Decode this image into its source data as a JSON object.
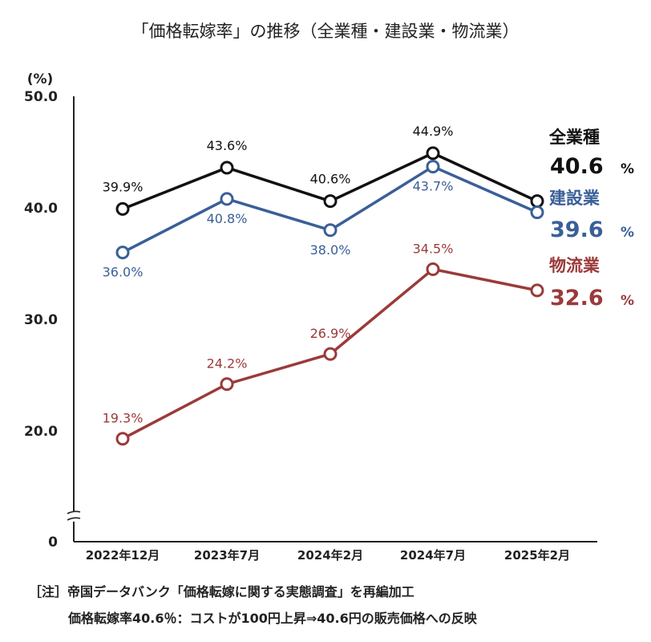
{
  "chart_data": {
    "type": "line",
    "title": "「価格転嫁率」の推移（全業種・建設業・物流業）",
    "ylabel": "(%)",
    "categories": [
      "2022年12月",
      "2023年7月",
      "2024年2月",
      "2024年7月",
      "2025年2月"
    ],
    "ylim": [
      10,
      50
    ],
    "yticks": [
      "50.0",
      "40.0",
      "30.0",
      "20.0",
      "0"
    ],
    "series": [
      {
        "name": "全業種",
        "color": "#111111",
        "values": [
          39.9,
          43.6,
          40.6,
          44.9,
          40.6
        ],
        "labels": [
          "39.9%",
          "43.6%",
          "40.6%",
          "44.9%",
          ""
        ],
        "end_value": "40.6",
        "end_unit": "%"
      },
      {
        "name": "建設業",
        "color": "#3a5f98",
        "values": [
          36.0,
          40.8,
          38.0,
          43.7,
          39.6
        ],
        "labels": [
          "36.0%",
          "40.8%",
          "38.0%",
          "43.7%",
          ""
        ],
        "end_value": "39.6",
        "end_unit": "%"
      },
      {
        "name": "物流業",
        "color": "#9b3a3a",
        "values": [
          19.3,
          24.2,
          26.9,
          34.5,
          32.6
        ],
        "labels": [
          "19.3%",
          "24.2%",
          "26.9%",
          "34.5%",
          ""
        ],
        "end_value": "32.6",
        "end_unit": "%"
      }
    ],
    "axis_break": true
  },
  "notes": {
    "line1": "［注］帝国データバンク「価格転嫁に関する実態調査」を再編加工",
    "line2": "価格転嫁率40.6％：コストが100円上昇⇒40.6円の販売価格への反映"
  }
}
